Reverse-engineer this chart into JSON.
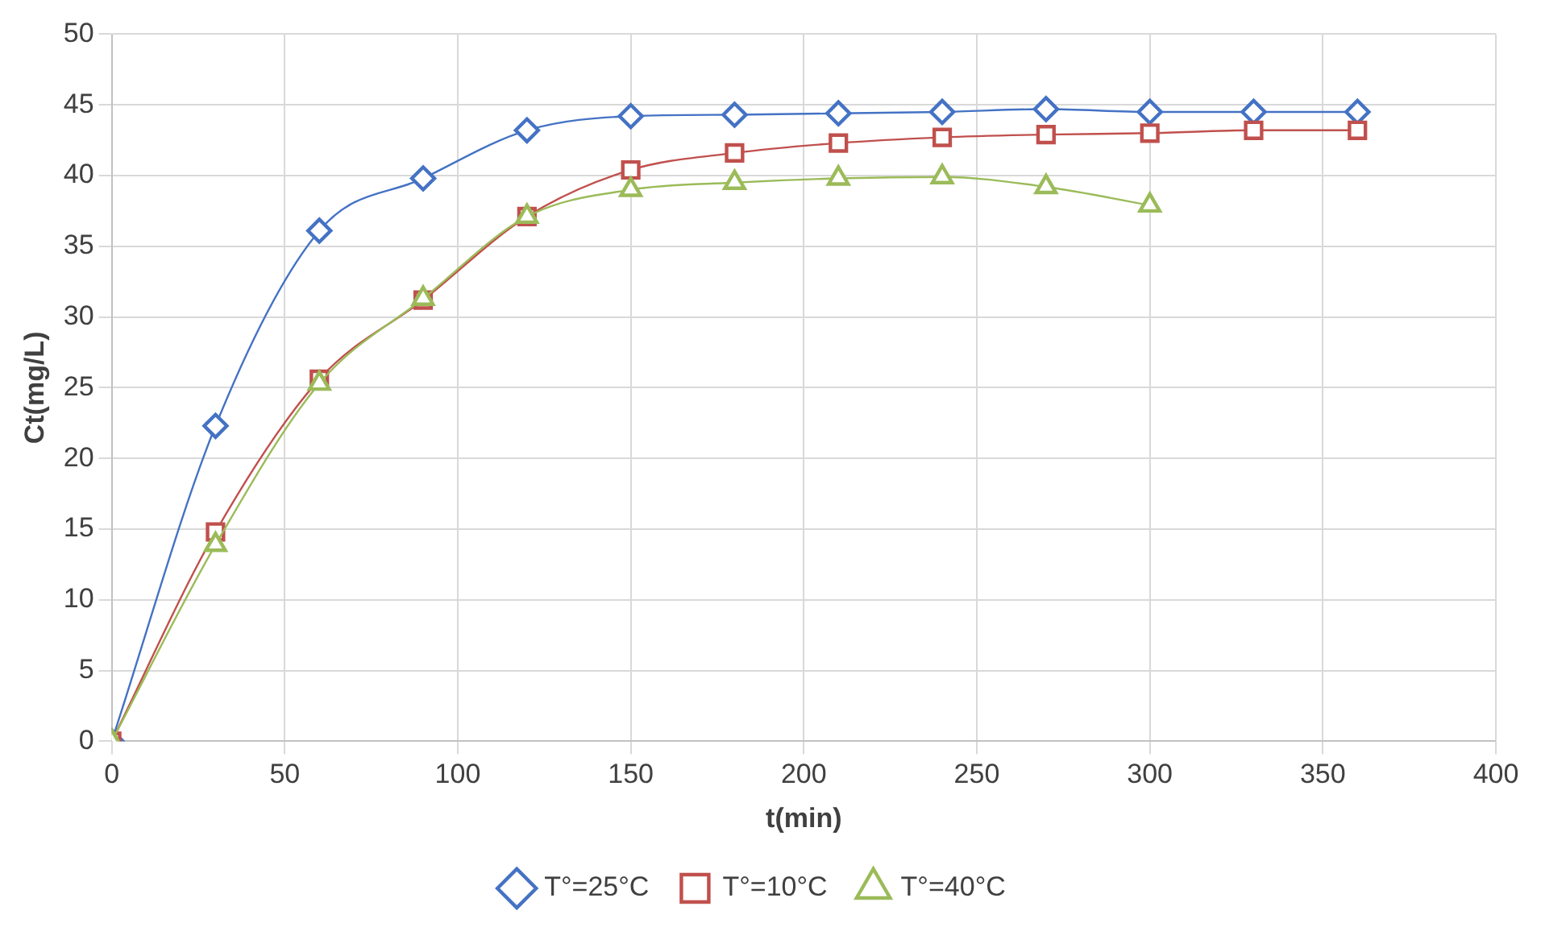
{
  "chart_data": {
    "type": "line",
    "xlabel": "t(min)",
    "ylabel": "Ct(mg/L)",
    "xlim": [
      0,
      400
    ],
    "xticks": [
      0,
      50,
      100,
      150,
      200,
      250,
      300,
      350,
      400
    ],
    "ylim": [
      0,
      50
    ],
    "yticks": [
      0,
      5,
      10,
      15,
      20,
      25,
      30,
      35,
      40,
      45,
      50
    ],
    "grid": true,
    "legend": "bottom",
    "series": [
      {
        "name": "T°=25°C",
        "color": "#4472c4",
        "marker": "diamond",
        "x": [
          0,
          30,
          60,
          90,
          120,
          150,
          180,
          210,
          240,
          270,
          300,
          330,
          360
        ],
        "values": [
          0,
          22.3,
          36.1,
          39.8,
          43.2,
          44.2,
          44.3,
          44.4,
          44.5,
          44.7,
          44.5,
          44.5,
          44.5
        ]
      },
      {
        "name": "T°=10°C",
        "color": "#c0504d",
        "marker": "square",
        "x": [
          0,
          30,
          60,
          90,
          120,
          150,
          180,
          210,
          240,
          270,
          300,
          330,
          360
        ],
        "values": [
          0,
          14.8,
          25.6,
          31.2,
          37.1,
          40.4,
          41.6,
          42.3,
          42.7,
          42.9,
          43.0,
          43.2,
          43.2
        ]
      },
      {
        "name": "T°=40°C",
        "color": "#9bbb59",
        "marker": "triangle",
        "x": [
          0,
          30,
          60,
          90,
          120,
          150,
          180,
          210,
          240,
          270,
          300
        ],
        "values": [
          0,
          13.9,
          25.3,
          31.3,
          37.1,
          39.0,
          39.5,
          39.8,
          39.9,
          39.2,
          37.9
        ]
      }
    ]
  }
}
